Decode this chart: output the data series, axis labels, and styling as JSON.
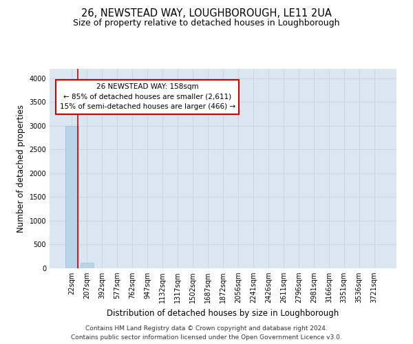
{
  "title": "26, NEWSTEAD WAY, LOUGHBOROUGH, LE11 2UA",
  "subtitle": "Size of property relative to detached houses in Loughborough",
  "xlabel": "Distribution of detached houses by size in Loughborough",
  "ylabel": "Number of detached properties",
  "footer_line1": "Contains HM Land Registry data © Crown copyright and database right 2024.",
  "footer_line2": "Contains public sector information licensed under the Open Government Licence v3.0.",
  "categories": [
    "22sqm",
    "207sqm",
    "392sqm",
    "577sqm",
    "762sqm",
    "947sqm",
    "1132sqm",
    "1317sqm",
    "1502sqm",
    "1687sqm",
    "1872sqm",
    "2056sqm",
    "2241sqm",
    "2426sqm",
    "2611sqm",
    "2796sqm",
    "2981sqm",
    "3166sqm",
    "3351sqm",
    "3536sqm",
    "3721sqm"
  ],
  "values": [
    3000,
    110,
    2,
    1,
    0,
    0,
    0,
    0,
    0,
    0,
    0,
    0,
    0,
    0,
    0,
    0,
    0,
    0,
    0,
    0,
    0
  ],
  "bar_color": "#b8d4e8",
  "bar_edge_color": "#9bbbd8",
  "grid_color": "#c8d4e4",
  "background_color": "#dce6f0",
  "ylim": [
    0,
    4200
  ],
  "yticks": [
    0,
    500,
    1000,
    1500,
    2000,
    2500,
    3000,
    3500,
    4000
  ],
  "annotation_line1": "26 NEWSTEAD WAY: 158sqm",
  "annotation_line2": "← 85% of detached houses are smaller (2,611)",
  "annotation_line3": "15% of semi-detached houses are larger (466) →",
  "annotation_box_color": "#cc0000",
  "vline_x": 0.4,
  "title_fontsize": 10.5,
  "subtitle_fontsize": 9,
  "axis_label_fontsize": 8.5,
  "tick_fontsize": 7,
  "annotation_fontsize": 7.5,
  "footer_fontsize": 6.5
}
